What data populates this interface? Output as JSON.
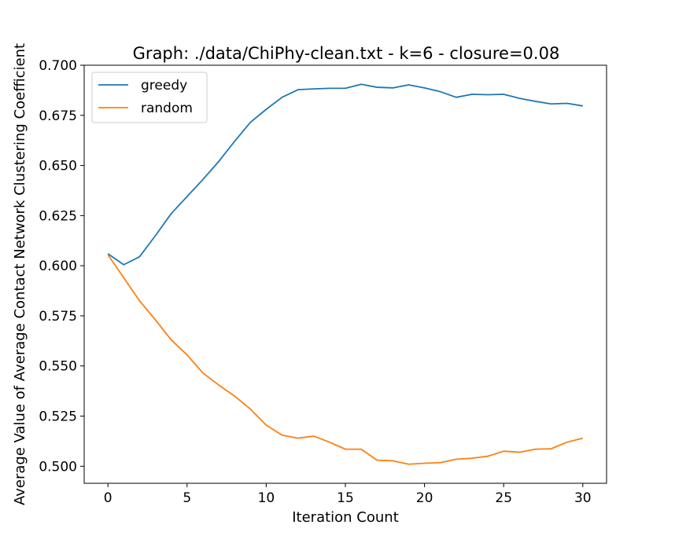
{
  "chart_data": {
    "type": "line",
    "title": "Graph: ./data/ChiPhy-clean.txt - k=6 - closure=0.08",
    "xlabel": "Iteration Count",
    "ylabel": "Average Value of Average Contact Network Clustering Coefficient",
    "xlim": [
      -1.5,
      31.5
    ],
    "ylim": [
      0.4915,
      0.7
    ],
    "xticks": [
      "0",
      "5",
      "10",
      "15",
      "20",
      "25",
      "30"
    ],
    "yticks": [
      "0.500",
      "0.525",
      "0.550",
      "0.575",
      "0.600",
      "0.625",
      "0.650",
      "0.675",
      "0.700"
    ],
    "grid": false,
    "legend_position": "upper-left",
    "x": [
      0,
      1,
      2,
      3,
      4,
      5,
      6,
      7,
      8,
      9,
      10,
      11,
      12,
      13,
      14,
      15,
      16,
      17,
      18,
      19,
      20,
      21,
      22,
      23,
      24,
      25,
      26,
      27,
      28,
      29,
      30
    ],
    "series": [
      {
        "name": "greedy",
        "color": "#1f77b4",
        "values": [
          0.606,
          0.6005,
          0.6045,
          0.615,
          0.626,
          0.6345,
          0.643,
          0.652,
          0.662,
          0.6715,
          0.678,
          0.684,
          0.6878,
          0.6882,
          0.6885,
          0.6885,
          0.6905,
          0.689,
          0.6887,
          0.6902,
          0.6887,
          0.6868,
          0.684,
          0.6855,
          0.6853,
          0.6855,
          0.6835,
          0.682,
          0.6807,
          0.681,
          0.6797
        ]
      },
      {
        "name": "random",
        "color": "#ff7f0e",
        "values": [
          0.6055,
          0.594,
          0.5825,
          0.573,
          0.563,
          0.5555,
          0.5465,
          0.5405,
          0.535,
          0.5285,
          0.5205,
          0.5155,
          0.514,
          0.515,
          0.512,
          0.5085,
          0.5085,
          0.503,
          0.5027,
          0.501,
          0.5015,
          0.5018,
          0.5035,
          0.504,
          0.505,
          0.5075,
          0.507,
          0.5085,
          0.5087,
          0.512,
          0.514
        ]
      }
    ]
  }
}
